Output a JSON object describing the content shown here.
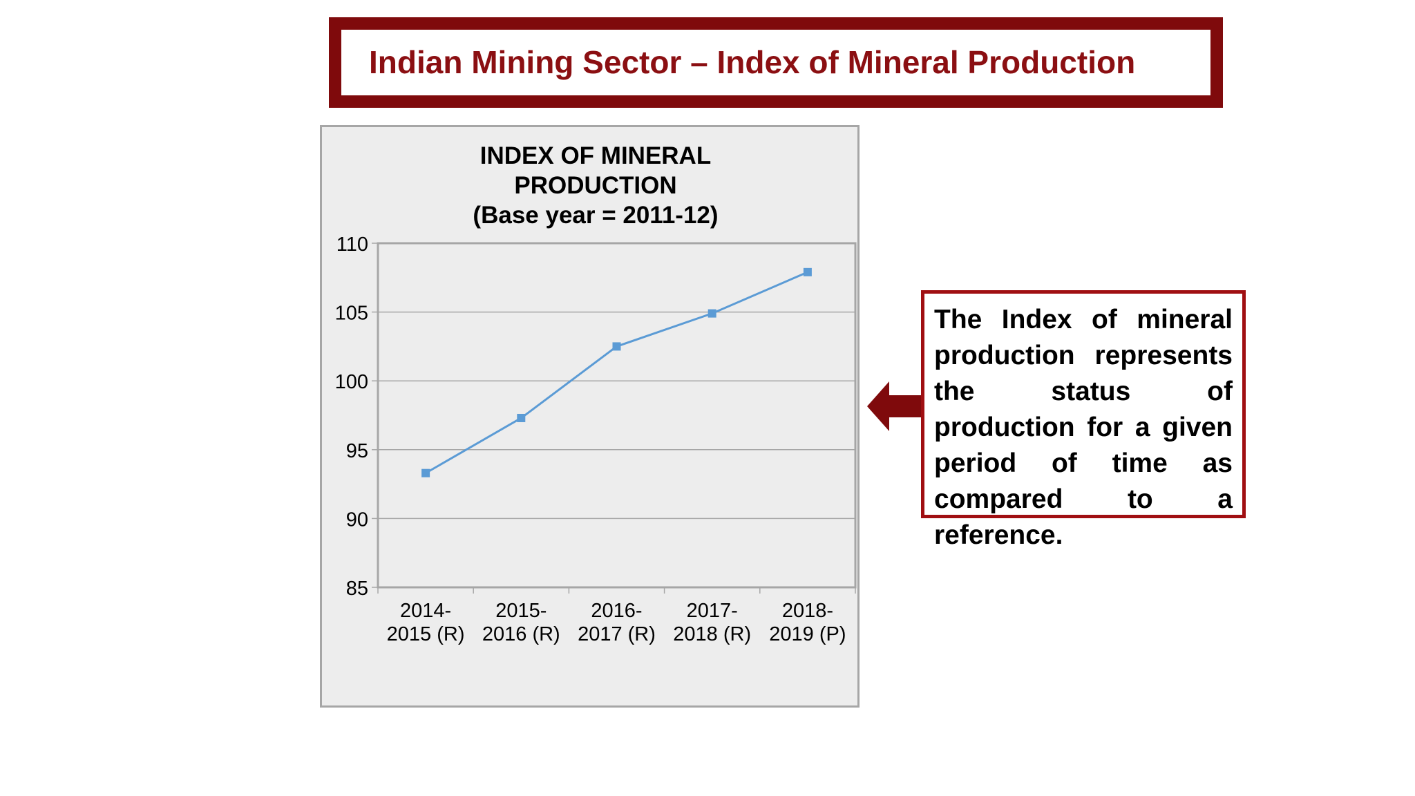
{
  "slide": {
    "title": "Indian Mining Sector – Index of Mineral Production",
    "description": "The Index of mineral production represents the status of production for a given period of time as compared to a reference."
  },
  "colors": {
    "accent": "#8b0f12",
    "title_border": "#7f0a0c",
    "desc_border": "#a00f12",
    "line": "#5b9bd5",
    "panel_bg": "#ededed",
    "panel_border": "#a6a6a6",
    "grid": "#a6a6a6"
  },
  "icons": {
    "pointer": "left-arrow-icon"
  },
  "chart_data": {
    "type": "line",
    "title_lines": [
      "INDEX OF MINERAL",
      "PRODUCTION",
      "(Base year = 2011-12)"
    ],
    "categories": [
      [
        "2014-",
        "2015 (R)"
      ],
      [
        "2015-",
        "2016 (R)"
      ],
      [
        "2016-",
        "2017 (R)"
      ],
      [
        "2017-",
        "2018 (R)"
      ],
      [
        "2018-",
        "2019 (P)"
      ]
    ],
    "values": [
      93.3,
      97.3,
      102.5,
      104.9,
      107.9
    ],
    "ylim": [
      85,
      110
    ],
    "yticks": [
      85,
      90,
      95,
      100,
      105,
      110
    ],
    "grid": true,
    "legend": "none",
    "marker": "square"
  }
}
